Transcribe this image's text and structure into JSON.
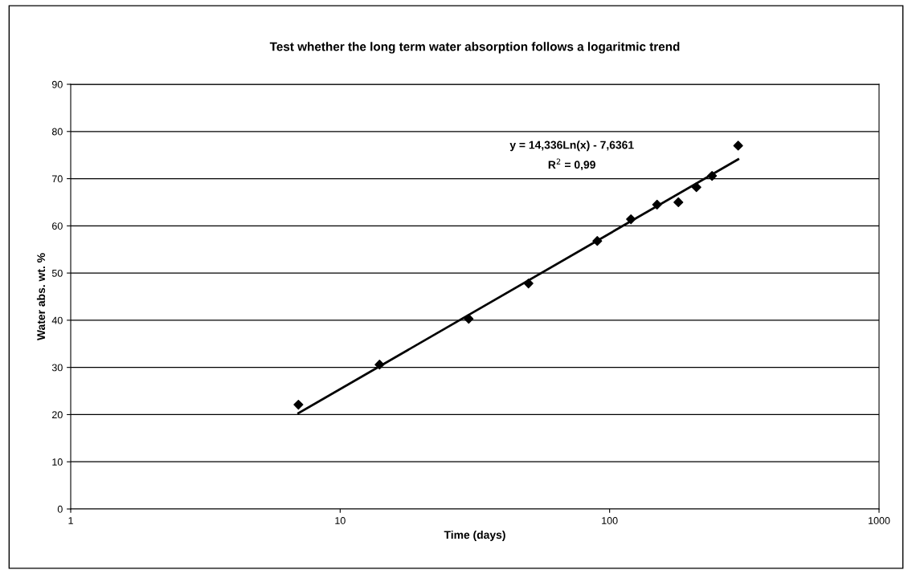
{
  "chart_data": {
    "type": "scatter",
    "title": "Test whether the long term water absorption follows a logaritmic trend",
    "xlabel": "Time (days)",
    "ylabel": "Water abs. wt. %",
    "log": "x",
    "xlim": [
      1,
      1000
    ],
    "xticks": [
      1,
      10,
      100,
      1000
    ],
    "ylim": [
      0,
      90
    ],
    "yticks": [
      0,
      10,
      20,
      30,
      40,
      50,
      60,
      70,
      80,
      90
    ],
    "grid": "y",
    "legend": false,
    "series": [
      {
        "marker": "diamond",
        "color": "#000000",
        "x": [
          7,
          14,
          30,
          50,
          90,
          120,
          150,
          180,
          210,
          240,
          300
        ],
        "values": [
          22.1,
          30.6,
          40.3,
          47.8,
          56.8,
          61.4,
          64.5,
          65.0,
          68.2,
          70.6,
          77.0
        ]
      },
      {
        "type": "line",
        "marker": "none",
        "color": "#000000",
        "line_style": "solid",
        "x": [
          7,
          300
        ],
        "values": [
          20.3,
          74.1
        ]
      }
    ],
    "annotations": [
      "y = 14,336Ln(x) - 7,6361",
      "R$^{2}$ = 0,99"
    ]
  }
}
